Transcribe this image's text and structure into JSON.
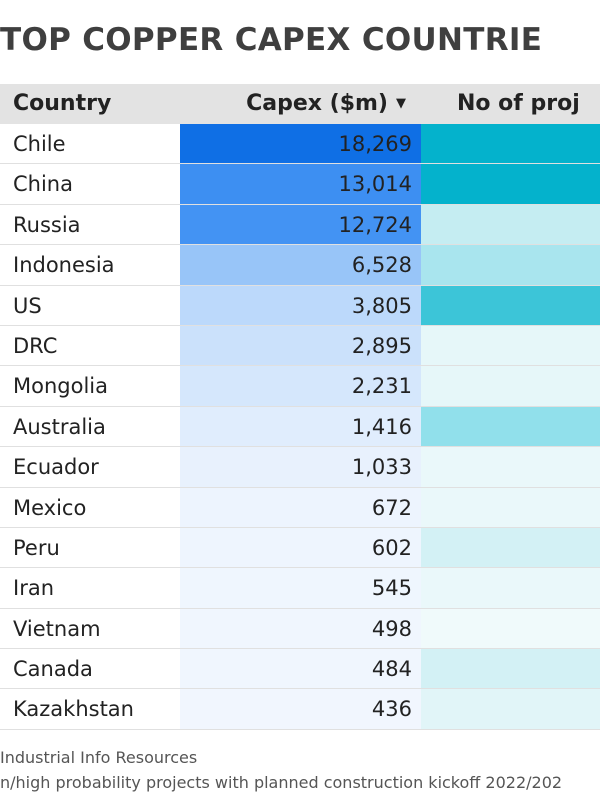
{
  "title": "TOP COPPER CAPEX COUNTRIE",
  "columns": {
    "country": "Country",
    "capex": "Capex ($m)",
    "projects": "No of proj"
  },
  "chart_data": {
    "type": "table",
    "title": "TOP COPPER CAPEX COUNTRIE",
    "columns": [
      "Country",
      "Capex ($m)",
      "No of proj"
    ],
    "sort": {
      "column": "Capex ($m)",
      "order": "descending"
    },
    "rows": [
      {
        "country": "Chile",
        "capex": "18,269",
        "capex_value": 18269,
        "capex_color": "#0f6fe5",
        "projects_color": "#04b2cc"
      },
      {
        "country": "China",
        "capex": "13,014",
        "capex_value": 13014,
        "capex_color": "#3d8ff2",
        "projects_color": "#04b2cc"
      },
      {
        "country": "Russia",
        "capex": "12,724",
        "capex_value": 12724,
        "capex_color": "#4393f3",
        "projects_color": "#c5edf2"
      },
      {
        "country": "Indonesia",
        "capex": "6,528",
        "capex_value": 6528,
        "capex_color": "#98c5f8",
        "projects_color": "#a9e5ee"
      },
      {
        "country": "US",
        "capex": "3,805",
        "capex_value": 3805,
        "capex_color": "#bcd9fb",
        "projects_color": "#3cc5d8"
      },
      {
        "country": "DRC",
        "capex": "2,895",
        "capex_value": 2895,
        "capex_color": "#cbe1fb",
        "projects_color": "#e6f7f9"
      },
      {
        "country": "Mongolia",
        "capex": "2,231",
        "capex_value": 2231,
        "capex_color": "#d5e7fc",
        "projects_color": "#e6f7f9"
      },
      {
        "country": "Australia",
        "capex": "1,416",
        "capex_value": 1416,
        "capex_color": "#e0edfd",
        "projects_color": "#91e0eb"
      },
      {
        "country": "Ecuador",
        "capex": "1,033",
        "capex_value": 1033,
        "capex_color": "#e8f1fd",
        "projects_color": "#eaf8fa"
      },
      {
        "country": "Mexico",
        "capex": "672",
        "capex_value": 672,
        "capex_color": "#edf4fe",
        "projects_color": "#eaf8fa"
      },
      {
        "country": "Peru",
        "capex": "602",
        "capex_value": 602,
        "capex_color": "#eef5fe",
        "projects_color": "#d3f1f5"
      },
      {
        "country": "Iran",
        "capex": "545",
        "capex_value": 545,
        "capex_color": "#eff6fe",
        "projects_color": "#eaf8fa"
      },
      {
        "country": "Vietnam",
        "capex": "498",
        "capex_value": 498,
        "capex_color": "#f0f6fe",
        "projects_color": "#f0fafb"
      },
      {
        "country": "Canada",
        "capex": "484",
        "capex_value": 484,
        "capex_color": "#f0f6fe",
        "projects_color": "#d3f1f5"
      },
      {
        "country": "Kazakhstan",
        "capex": "436",
        "capex_value": 436,
        "capex_color": "#f1f6fe",
        "projects_color": "#e1f5f8"
      }
    ]
  },
  "footer": {
    "source": "Industrial Info Resources",
    "note": "n/high probability projects with planned construction kickoff 2022/202"
  }
}
